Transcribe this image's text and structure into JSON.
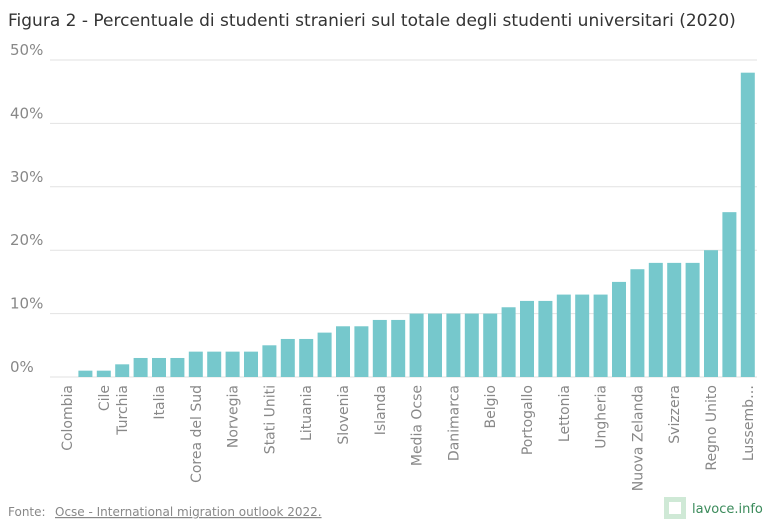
{
  "chart_data": {
    "type": "bar",
    "title": "Figura 2 - Percentuale di studenti stranieri sul totale degli studenti universitari (2020)",
    "categories": [
      "Colombia",
      null,
      "Cile",
      "Turchia",
      null,
      "Italia",
      null,
      "Corea del Sud",
      null,
      "Norvegia",
      null,
      "Stati Uniti",
      null,
      "Lituania",
      null,
      "Slovenia",
      null,
      "Islanda",
      null,
      "Media Ocse",
      null,
      "Danimarca",
      null,
      "Belgio",
      null,
      "Portogallo",
      null,
      "Lettonia",
      null,
      "Ungheria",
      null,
      "Nuova Zelanda",
      null,
      "Svizzera",
      null,
      "Regno Unito",
      null,
      "Lussemb…"
    ],
    "values": [
      0,
      1,
      1,
      2,
      3,
      3,
      3,
      4,
      4,
      4,
      4,
      5,
      6,
      6,
      7,
      8,
      8,
      9,
      9,
      10,
      10,
      10,
      10,
      10,
      11,
      12,
      12,
      13,
      13,
      13,
      15,
      17,
      18,
      18,
      18,
      20,
      26,
      48
    ],
    "color": "#76c8cc",
    "ylim": [
      0,
      50
    ],
    "yticks": [
      {
        "value": 0,
        "label": "0%"
      },
      {
        "value": 10,
        "label": "10%"
      },
      {
        "value": 20,
        "label": "20%"
      },
      {
        "value": 30,
        "label": "30%"
      },
      {
        "value": 40,
        "label": "40%"
      },
      {
        "value": 50,
        "label": "50%"
      }
    ],
    "grid": true,
    "source_label": "Fonte:",
    "source": "Ocse - International migration outlook 2022.",
    "logo": "lavoce.info"
  }
}
